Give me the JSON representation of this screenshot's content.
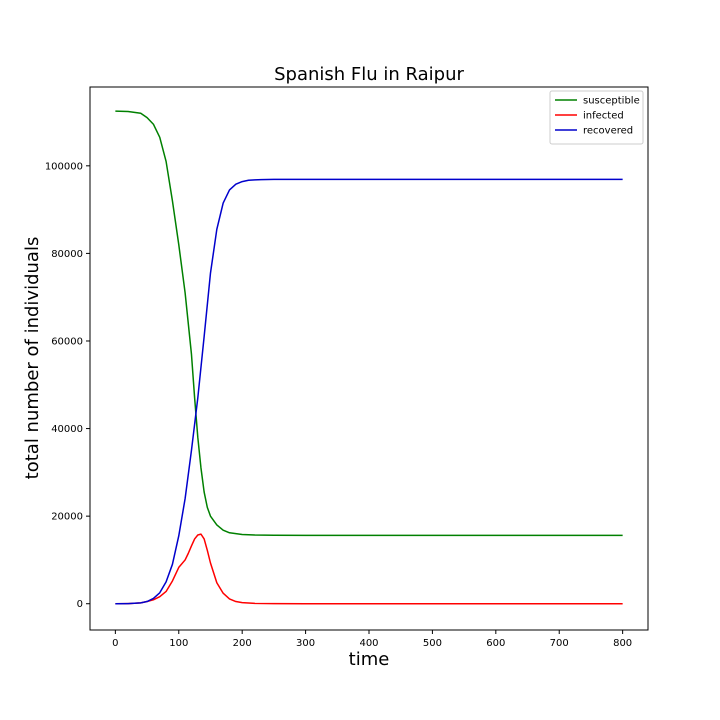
{
  "chart_data": {
    "type": "line",
    "title": "Spanish Flu in Raipur",
    "xlabel": "time",
    "ylabel": "total number of individuals",
    "xlim": [
      -40,
      840
    ],
    "ylim": [
      -6000,
      118000
    ],
    "xticks": [
      0,
      100,
      200,
      300,
      400,
      500,
      600,
      700,
      800
    ],
    "yticks": [
      0,
      20000,
      40000,
      60000,
      80000,
      100000
    ],
    "grid": false,
    "legend_position": "top-right",
    "series": [
      {
        "name": "susceptible",
        "color": "#008000",
        "x": [
          0,
          20,
          40,
          50,
          60,
          70,
          80,
          90,
          100,
          110,
          120,
          125,
          130,
          135,
          140,
          145,
          150,
          160,
          170,
          180,
          200,
          220,
          250,
          300,
          400,
          600,
          800
        ],
        "y": [
          112500,
          112400,
          112000,
          111000,
          109500,
          106500,
          101000,
          92000,
          82000,
          71000,
          57000,
          47000,
          38000,
          31000,
          25500,
          22000,
          20000,
          18000,
          16800,
          16200,
          15800,
          15700,
          15650,
          15600,
          15600,
          15600,
          15600
        ]
      },
      {
        "name": "infected",
        "color": "#ff0000",
        "x": [
          0,
          20,
          40,
          50,
          60,
          70,
          80,
          90,
          100,
          110,
          115,
          120,
          125,
          130,
          135,
          140,
          145,
          150,
          160,
          170,
          180,
          190,
          200,
          220,
          250,
          300,
          400,
          600,
          800
        ],
        "y": [
          0,
          20,
          200,
          500,
          900,
          1600,
          2800,
          5200,
          8300,
          10000,
          11500,
          13200,
          14800,
          15700,
          15900,
          14800,
          12200,
          9300,
          4800,
          2400,
          1100,
          500,
          250,
          80,
          20,
          5,
          0,
          0,
          0
        ]
      },
      {
        "name": "recovered",
        "color": "#0000cc",
        "x": [
          0,
          20,
          40,
          50,
          60,
          70,
          80,
          90,
          100,
          110,
          120,
          130,
          140,
          150,
          160,
          170,
          180,
          190,
          200,
          210,
          220,
          230,
          250,
          300,
          400,
          600,
          800
        ],
        "y": [
          0,
          20,
          200,
          500,
          1200,
          2500,
          5000,
          9000,
          15500,
          24000,
          35000,
          47000,
          61000,
          75500,
          85500,
          91500,
          94500,
          95800,
          96400,
          96700,
          96800,
          96850,
          96900,
          96900,
          96900,
          96900,
          96900
        ]
      }
    ]
  }
}
